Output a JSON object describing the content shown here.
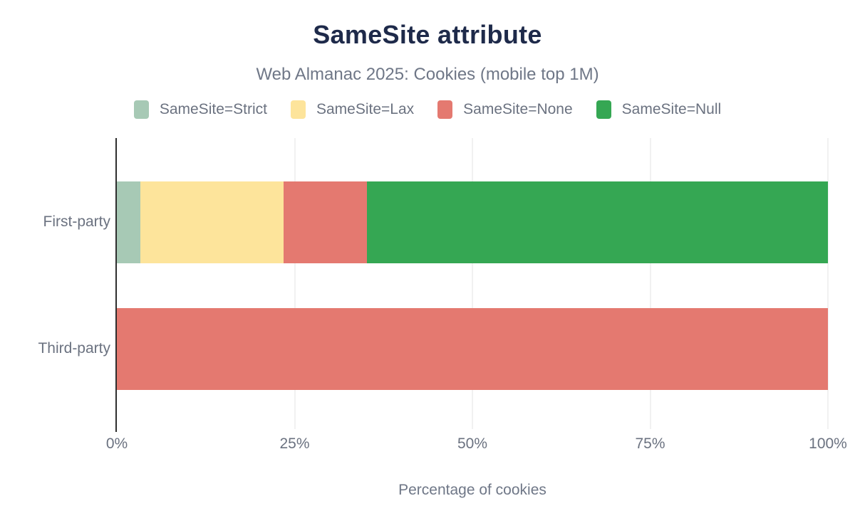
{
  "title": "SameSite attribute",
  "subtitle": "Web Almanac 2025: Cookies (mobile top 1M)",
  "style": {
    "title_color": "#1e2a4a",
    "subtitle_color": "#6f7787",
    "text_color": "#6b7280",
    "axis_line_color": "#2e2e2e",
    "gridline_color": "#f1f1f1",
    "background": "#ffffff"
  },
  "chart_data": {
    "type": "bar",
    "orientation": "horizontal",
    "stacked": true,
    "title": "SameSite attribute",
    "subtitle": "Web Almanac 2025: Cookies (mobile top 1M)",
    "categories": [
      "First-party",
      "Third-party"
    ],
    "series": [
      {
        "name": "SameSite=Strict",
        "color": "#a7c9b5",
        "values": [
          3.3,
          0
        ]
      },
      {
        "name": "SameSite=Lax",
        "color": "#fde49b",
        "values": [
          20.1,
          0
        ]
      },
      {
        "name": "SameSite=None",
        "color": "#e47970",
        "values": [
          11.8,
          100
        ]
      },
      {
        "name": "SameSite=Null",
        "color": "#35a753",
        "values": [
          64.8,
          0
        ]
      }
    ],
    "xlabel": "Percentage of cookies",
    "ylabel": "",
    "xlim": [
      0,
      100
    ],
    "x_ticks": [
      {
        "label": "0%",
        "value": 0
      },
      {
        "label": "25%",
        "value": 25
      },
      {
        "label": "50%",
        "value": 50
      },
      {
        "label": "75%",
        "value": 75
      },
      {
        "label": "100%",
        "value": 100
      }
    ],
    "grid": true,
    "legend_position": "top"
  }
}
